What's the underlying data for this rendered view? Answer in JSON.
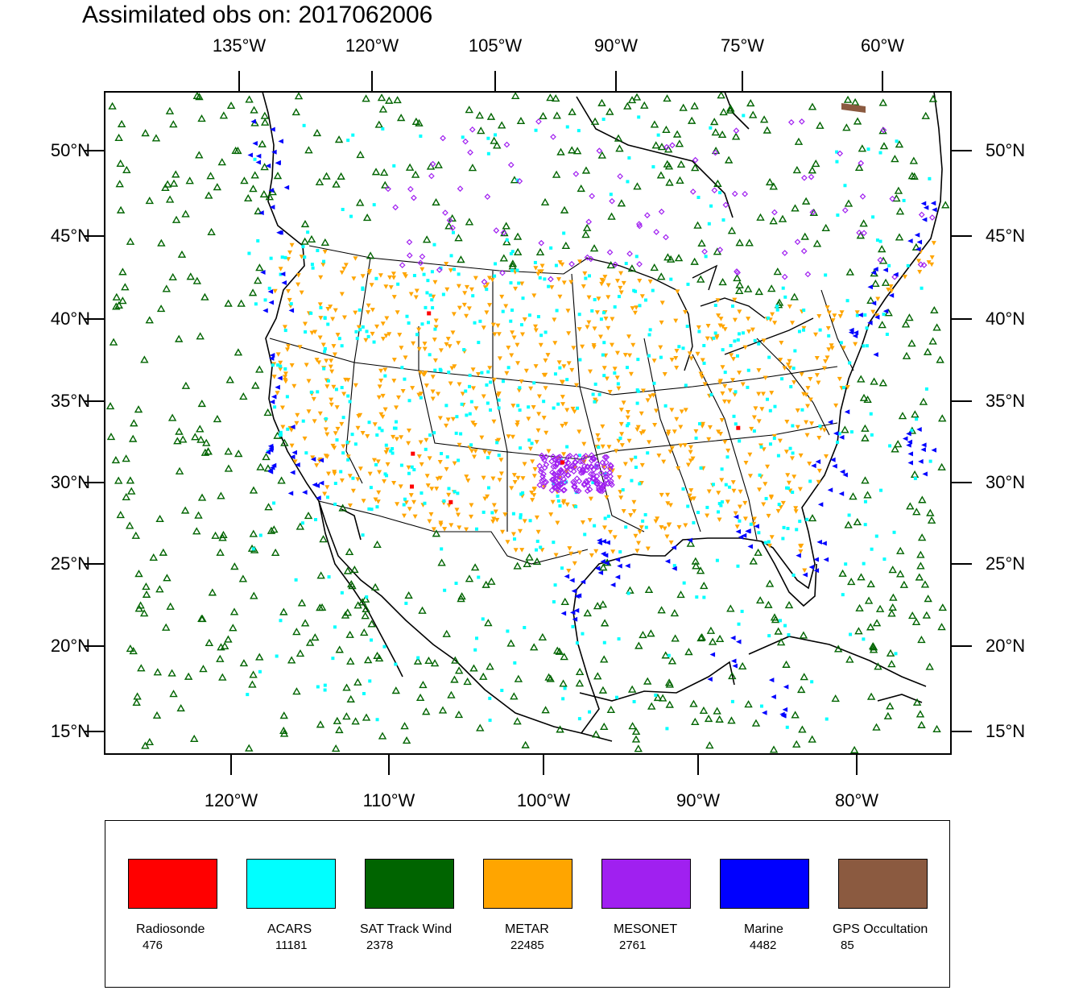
{
  "title": {
    "prefix": "Assimilated obs on: ",
    "cycle": "2017062006"
  },
  "axes": {
    "top_longitudes": [
      "135°W",
      "120°W",
      "105°W",
      "90°W",
      "75°W",
      "60°W"
    ],
    "bottom_longitudes": [
      "120°W",
      "110°W",
      "100°W",
      "90°W",
      "80°W"
    ],
    "left_latitudes": [
      "50°N",
      "45°N",
      "40°N",
      "35°N",
      "30°N",
      "25°N",
      "20°N",
      "15°N"
    ],
    "right_latitudes": [
      "50°N",
      "45°N",
      "40°N",
      "35°N",
      "30°N",
      "25°N",
      "20°N",
      "15°N"
    ]
  },
  "map": {
    "region": "Continental United States and surrounding waters",
    "lat_range": [
      14,
      53
    ],
    "lon_range": [
      -128,
      -74
    ]
  },
  "legend": [
    {
      "name": "Radiosonde",
      "count": "476",
      "color": "#ff0000",
      "symbol": "square-marker"
    },
    {
      "name": "ACARS",
      "count": "11181",
      "color": "#00ffff",
      "symbol": "square-marker"
    },
    {
      "name": "SAT Track Wind",
      "count": "2378",
      "color": "#006400",
      "symbol": "triangle-up-marker"
    },
    {
      "name": "METAR",
      "count": "22485",
      "color": "#ffa500",
      "symbol": "triangle-down-marker"
    },
    {
      "name": "MESONET",
      "count": "2761",
      "color": "#a020f0",
      "symbol": "diamond-marker"
    },
    {
      "name": "Marine",
      "count": "4482",
      "color": "#0000ff",
      "symbol": "triangle-left-marker"
    },
    {
      "name": "GPS Occultation",
      "count": "85",
      "color": "#8b5a40",
      "symbol": "bar-marker"
    }
  ]
}
